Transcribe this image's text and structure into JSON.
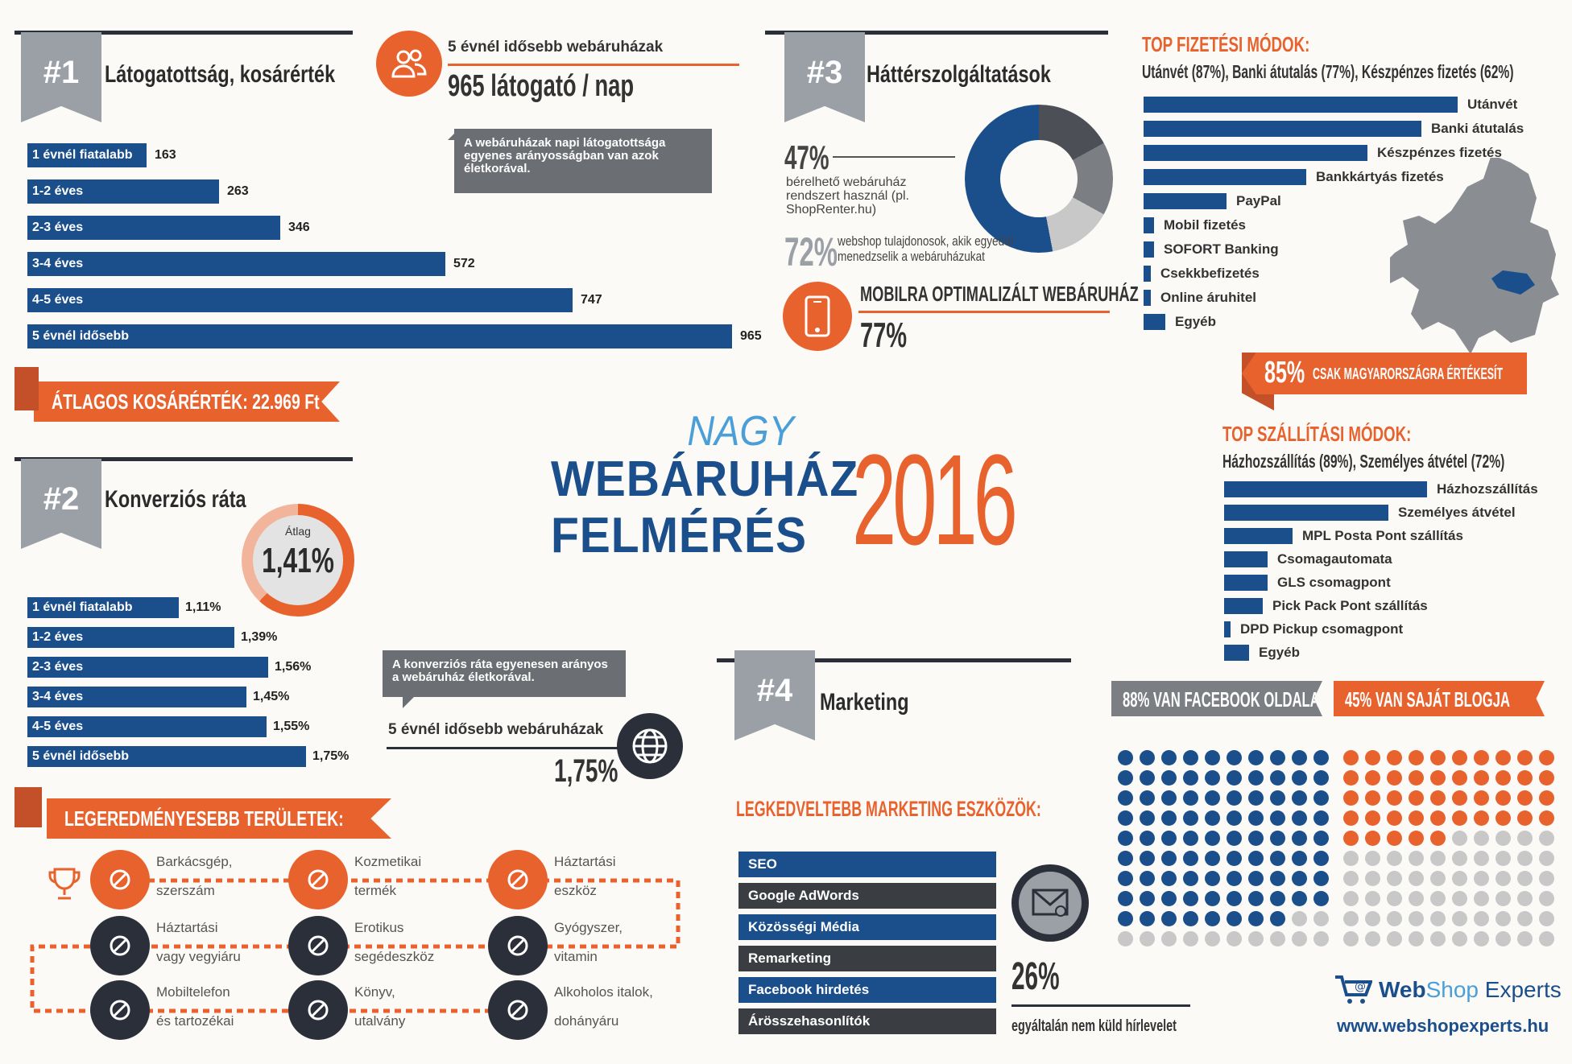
{
  "colors": {
    "navy": "#1b4f8c",
    "orange": "#e8622e",
    "gray": "#9aa0a6",
    "dark": "#2a2f3a",
    "lightgray": "#c8c8c8"
  },
  "title": {
    "nagy": "NAGY",
    "line1": "WEBÁRUHÁZ",
    "line2": "FELMÉRÉS",
    "year": "2016"
  },
  "s1": {
    "num": "#1",
    "title": "Látogatottság, kosárérték",
    "oldest_label": "5 évnél idősebb webáruházak",
    "visitors": "965  látogató / nap",
    "callout": "A webáruházak napi látogatottsága egyenes arányosságban van azok életkorával.",
    "basket": "ÁTLAGOS KOSÁRÉRTÉK: 22.969 Ft",
    "rows": [
      {
        "label": "1 évnél fiatalabb",
        "value": "163",
        "v": 163
      },
      {
        "label": "1-2 éves",
        "value": "263",
        "v": 263
      },
      {
        "label": "2-3 éves",
        "value": "346",
        "v": 346
      },
      {
        "label": "3-4 éves",
        "value": "572",
        "v": 572
      },
      {
        "label": "4-5 éves",
        "value": "747",
        "v": 747
      },
      {
        "label": "5 évnél idősebb",
        "value": "965",
        "v": 965
      }
    ]
  },
  "s2": {
    "num": "#2",
    "title": "Konverziós ráta",
    "avg_label": "Átlag",
    "avg_value": "1,41%",
    "callout": "A konverziós ráta egyenesen arányos a webáruház életkorával.",
    "oldest_label": "5 évnél idősebb webáruházak",
    "oldest_value": "1,75%",
    "rows": [
      {
        "label": "1 évnél fiatalabb",
        "value": "1,11%",
        "v": 1.11
      },
      {
        "label": "1-2 éves",
        "value": "1,39%",
        "v": 1.39
      },
      {
        "label": "2-3 éves",
        "value": "1,56%",
        "v": 1.56
      },
      {
        "label": "3-4 éves",
        "value": "1,45%",
        "v": 1.45
      },
      {
        "label": "4-5 éves",
        "value": "1,55%",
        "v": 1.55
      },
      {
        "label": "5 évnél idősebb",
        "value": "1,75%",
        "v": 1.75
      }
    ]
  },
  "areas": {
    "title": "LEGEREDMÉNYESEBB TERÜLETEK:",
    "items": [
      {
        "l1": "Barkácsgép,",
        "l2": "szerszám",
        "icon": "tools-icon"
      },
      {
        "l1": "Kozmetikai",
        "l2": "termék",
        "icon": "cosmetics-icon"
      },
      {
        "l1": "Háztartási",
        "l2": "eszköz",
        "icon": "mixer-icon"
      },
      {
        "l1": "Háztartási",
        "l2": "vagy vegyiáru",
        "icon": "bottle-icon"
      },
      {
        "l1": "Erotikus",
        "l2": "segédeszköz",
        "icon": "gender-icon"
      },
      {
        "l1": "Gyógyszer,",
        "l2": "vitamin",
        "icon": "pill-icon"
      },
      {
        "l1": "Mobiltelefon",
        "l2": "és tartozékai",
        "icon": "phone-icon"
      },
      {
        "l1": "Könyv,",
        "l2": "utalvány",
        "icon": "book-icon"
      },
      {
        "l1": "Alkoholos italok,",
        "l2": "dohányáru",
        "icon": "wine-icon"
      }
    ]
  },
  "s3": {
    "num": "#3",
    "title": "Háttérszolgáltatások",
    "rent_pct": "47%",
    "rent_text": "bérelhető webáruház rendszert használ (pl. ShopRenter.hu)",
    "owner_pct": "72%",
    "owner_text": "webshop tulajdonosok, akik egyedül menedzselik a webáruházukat",
    "mobile_title": "MOBILRA OPTIMALIZÁLT WEBÁRUHÁZ",
    "mobile_pct": "77%"
  },
  "pay": {
    "title": "TOP FIZETÉSI MÓDOK:",
    "subtitle": "Utánvét (87%), Banki átutalás (77%), Készpénzes fizetés (62%)",
    "rows": [
      {
        "label": "Utánvét",
        "v": 87
      },
      {
        "label": "Banki átutalás",
        "v": 77
      },
      {
        "label": "Készpénzes fizetés",
        "v": 62
      },
      {
        "label": "Bankkártyás fizetés",
        "v": 45
      },
      {
        "label": "PayPal",
        "v": 23
      },
      {
        "label": "Mobil fizetés",
        "v": 3
      },
      {
        "label": "SOFORT Banking",
        "v": 3
      },
      {
        "label": "Csekkbefizetés",
        "v": 2
      },
      {
        "label": "Online áruhitel",
        "v": 2
      },
      {
        "label": "Egyéb",
        "v": 6
      }
    ],
    "hu_pct": "85%",
    "hu_text": "CSAK MAGYARORSZÁGRA ÉRTÉKESÍT"
  },
  "ship": {
    "title": "TOP SZÁLLÍTÁSI MÓDOK:",
    "subtitle": "Házhozszállítás (89%), Személyes átvétel (72%)",
    "rows": [
      {
        "label": "Házhozszállítás",
        "v": 89
      },
      {
        "label": "Személyes átvétel",
        "v": 72
      },
      {
        "label": "MPL Posta Pont szállítás",
        "v": 30
      },
      {
        "label": "Csomagautomata",
        "v": 19
      },
      {
        "label": "GLS csomagpont",
        "v": 19
      },
      {
        "label": "Pick Pack Pont szállítás",
        "v": 17
      },
      {
        "label": "DPD Pickup csomagpont",
        "v": 3
      },
      {
        "label": "Egyéb",
        "v": 11
      }
    ]
  },
  "s4": {
    "num": "#4",
    "title": "Marketing",
    "tools_title": "LEGKEDVELTEBB MARKETING ESZKÖZÖK:",
    "tools": [
      "SEO",
      "Google AdWords",
      "Közösségi Média",
      "Remarketing",
      "Facebook hirdetés",
      "Árösszehasonlítók"
    ],
    "news_pct": "26%",
    "news_text": "egyáltalán nem küld hírlevelet",
    "fb": "88%  VAN FACEBOOK OLDALA",
    "fb_pct": 88,
    "blog": "45%  VAN SAJÁT BLOGJA",
    "blog_pct": 45
  },
  "brand": {
    "name_web": "Web",
    "name_shop": "Shop",
    "name_exp": "Experts",
    "url": "www.webshopexperts.hu"
  }
}
